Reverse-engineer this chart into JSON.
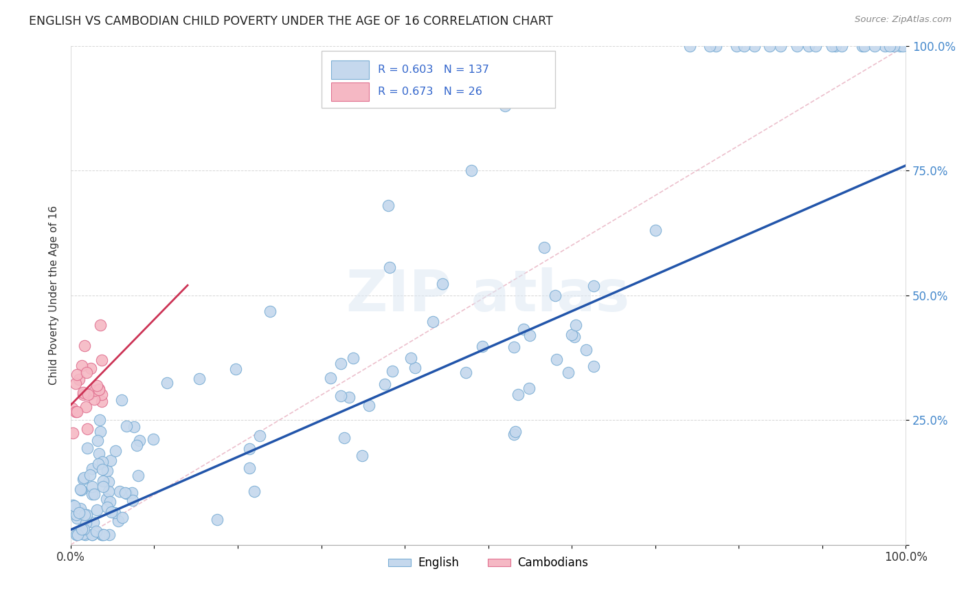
{
  "title": "ENGLISH VS CAMBODIAN CHILD POVERTY UNDER THE AGE OF 16 CORRELATION CHART",
  "source": "Source: ZipAtlas.com",
  "ylabel": "Child Poverty Under the Age of 16",
  "xlim": [
    0.0,
    1.0
  ],
  "ylim": [
    0.0,
    1.0
  ],
  "english_color": "#c5d8ed",
  "english_edge_color": "#7aadd4",
  "cambodian_color": "#f5b8c4",
  "cambodian_edge_color": "#e07090",
  "english_R": 0.603,
  "english_N": 137,
  "cambodian_R": 0.673,
  "cambodian_N": 26,
  "legend_color": "#3366cc",
  "english_line_color": "#2255aa",
  "cambodian_line_color": "#cc3355",
  "ref_line_color": "#e8b0c0",
  "ytick_color": "#4488cc",
  "background_color": "#ffffff",
  "english_line_x": [
    0.0,
    1.0
  ],
  "english_line_y": [
    0.03,
    0.76
  ],
  "cambodian_line_x": [
    0.0,
    0.14
  ],
  "cambodian_line_y": [
    0.28,
    0.52
  ],
  "ref_line_x": [
    0.0,
    1.0
  ],
  "ref_line_y": [
    0.0,
    1.0
  ]
}
